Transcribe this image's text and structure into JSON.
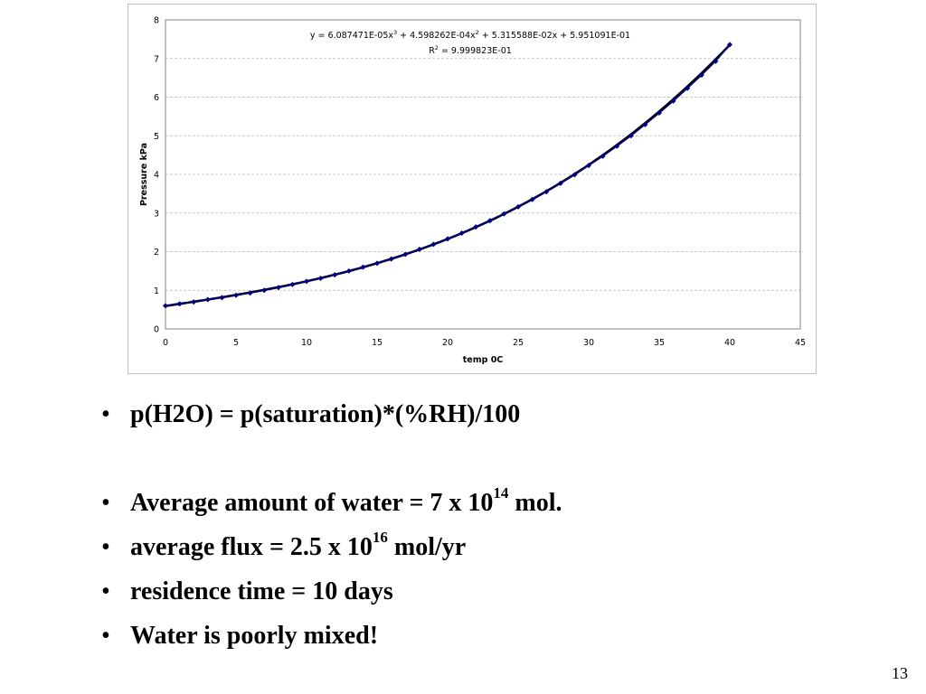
{
  "chart_data": {
    "type": "scatter",
    "xlabel": "temp 0C",
    "ylabel": "Pressure kPa",
    "xlim": [
      0,
      45
    ],
    "ylim": [
      0,
      8
    ],
    "xticks": [
      "0",
      "5",
      "10",
      "15",
      "20",
      "25",
      "30",
      "35",
      "40",
      "45"
    ],
    "yticks": [
      "0",
      "1",
      "2",
      "3",
      "4",
      "5",
      "6",
      "7",
      "8"
    ],
    "grid": "horizontal",
    "series": [
      {
        "x": [
          0,
          1,
          2,
          3,
          4,
          5,
          6,
          7,
          8,
          9,
          10,
          11,
          12,
          13,
          14,
          15,
          16,
          17,
          18,
          19,
          20,
          21,
          22,
          23,
          24,
          25,
          26,
          27,
          28,
          29,
          30,
          31,
          32,
          33,
          34,
          35,
          36,
          37,
          38,
          39,
          40
        ],
        "values": [
          0.6,
          0.65,
          0.7,
          0.76,
          0.81,
          0.87,
          0.93,
          1.0,
          1.07,
          1.15,
          1.23,
          1.31,
          1.4,
          1.5,
          1.6,
          1.7,
          1.81,
          1.93,
          2.06,
          2.19,
          2.33,
          2.48,
          2.64,
          2.8,
          2.98,
          3.16,
          3.35,
          3.55,
          3.77,
          3.99,
          4.23,
          4.47,
          4.73,
          5.0,
          5.29,
          5.59,
          5.9,
          6.23,
          6.57,
          6.93,
          7.36
        ],
        "color": "#000080"
      }
    ],
    "trendline": {
      "equation_parts": [
        "y = 6.087471E-05x",
        "3",
        " + 4.598262E-04x",
        "2",
        " + 5.315588E-02x + 5.951091E-01"
      ],
      "r2_parts": [
        "R",
        "2",
        " = 9.999823E-01"
      ],
      "coefficients": [
        6.087471e-05,
        0.0004598262,
        0.05315588,
        0.5951091
      ],
      "color": "#000000"
    }
  },
  "bullets": [
    {
      "pre": "p(H2O) = p(saturation)*(%RH)/100"
    },
    {
      "pre": "Average amount of water = 7 x 10",
      "sup": "14",
      "post": " mol."
    },
    {
      "pre": "average flux = 2.5 x 10",
      "sup": "16",
      "post": " mol/yr"
    },
    {
      "pre": "residence time = 10 days"
    },
    {
      "pre": "Water is poorly mixed!"
    }
  ],
  "bullet_symbol": "•",
  "slide_number": "13"
}
